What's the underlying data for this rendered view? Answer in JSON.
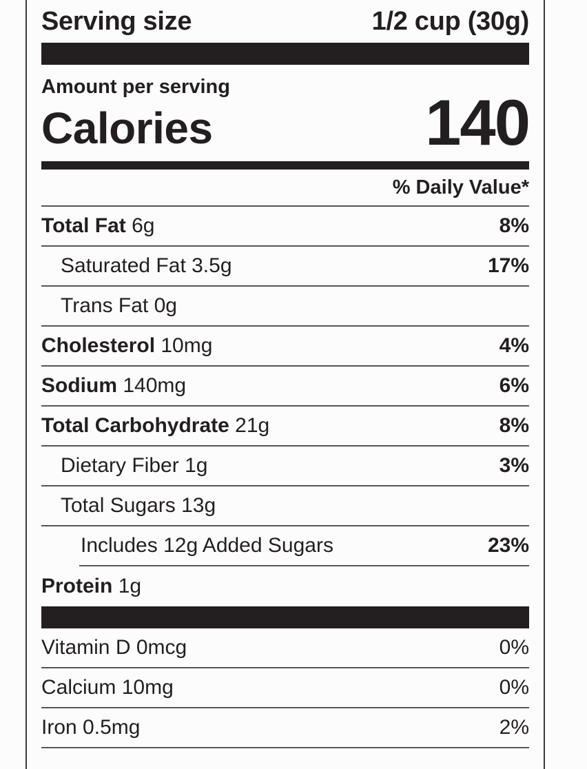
{
  "serving": {
    "label": "Serving size",
    "value": "1/2 cup (30g)"
  },
  "amount_per_serving": "Amount per serving",
  "calories": {
    "label": "Calories",
    "value": "140"
  },
  "daily_value_header": "% Daily Value*",
  "nutrients": [
    {
      "name": "Total Fat",
      "amount": "6g",
      "dv": "8%"
    },
    {
      "name": "Saturated Fat",
      "amount": "3.5g",
      "dv": "17%"
    },
    {
      "name": "Trans Fat",
      "amount": "0g",
      "dv": ""
    },
    {
      "name": "Cholesterol",
      "amount": "10mg",
      "dv": "4%"
    },
    {
      "name": "Sodium",
      "amount": "140mg",
      "dv": "6%"
    },
    {
      "name": "Total Carbohydrate",
      "amount": "21g",
      "dv": "8%"
    },
    {
      "name": "Dietary Fiber",
      "amount": "1g",
      "dv": "3%"
    },
    {
      "name": "Total Sugars",
      "amount": "13g",
      "dv": ""
    },
    {
      "name": "Includes 12g Added Sugars",
      "amount": "",
      "dv": "23%"
    },
    {
      "name": "Protein",
      "amount": "1g",
      "dv": ""
    }
  ],
  "vitamins": [
    {
      "name": "Vitamin D",
      "amount": "0mcg",
      "dv": "0%"
    },
    {
      "name": "Calcium",
      "amount": "10mg",
      "dv": "0%"
    },
    {
      "name": "Iron",
      "amount": "0.5mg",
      "dv": "2%"
    }
  ]
}
